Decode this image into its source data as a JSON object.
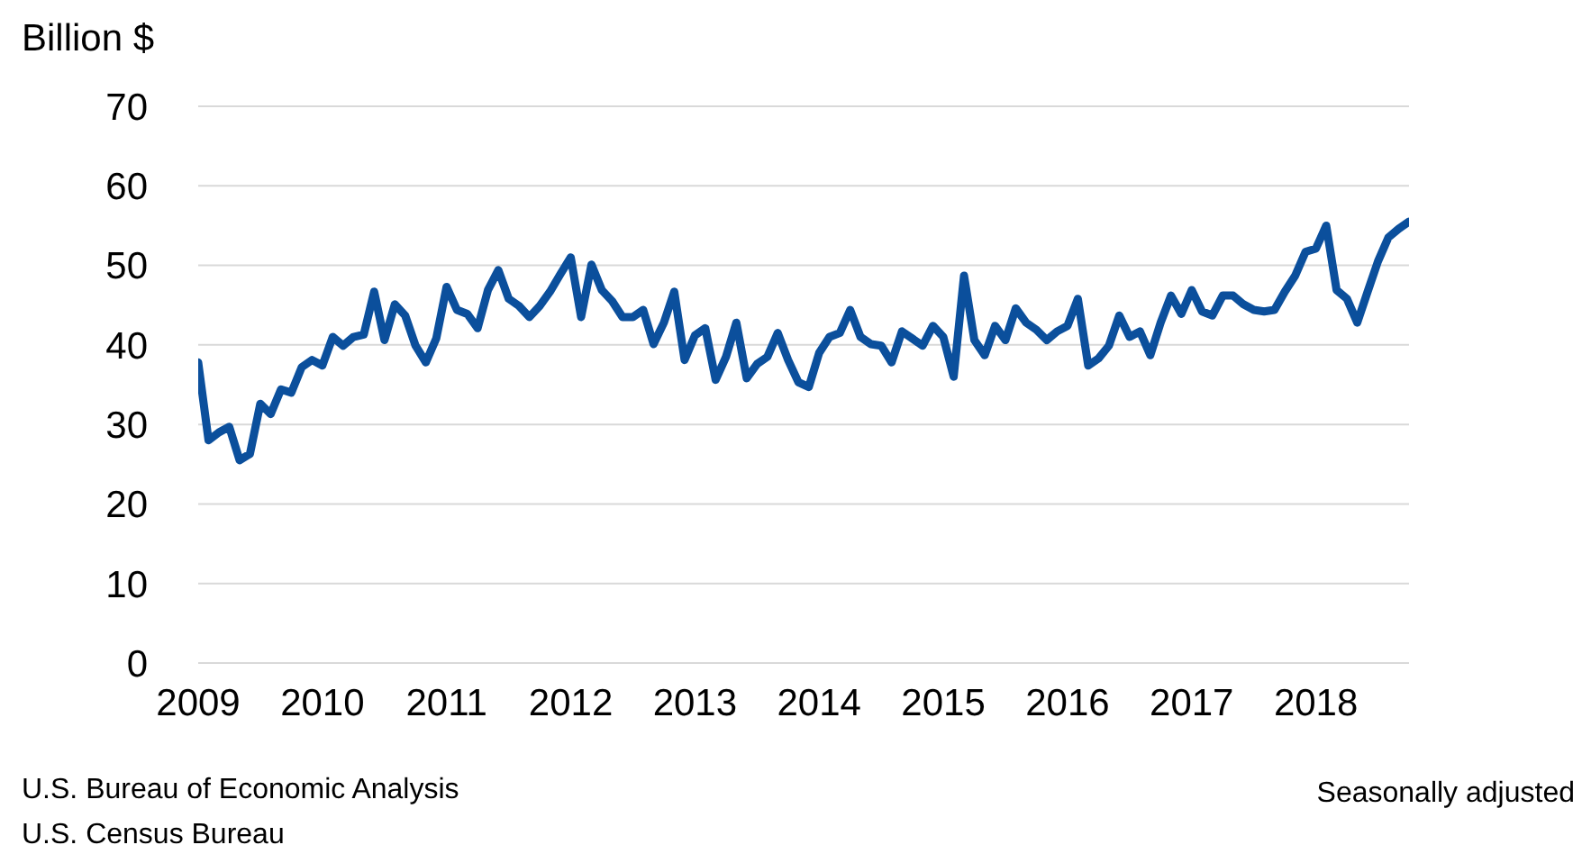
{
  "chart_data": {
    "type": "line",
    "ylabel": "Billion $",
    "annotations": [
      "U.S. Bureau of Economic Analysis",
      "U.S. Census Bureau",
      "Seasonally adjusted"
    ],
    "x": [
      "2009-01",
      "2009-02",
      "2009-03",
      "2009-04",
      "2009-05",
      "2009-06",
      "2009-07",
      "2009-08",
      "2009-09",
      "2009-10",
      "2009-11",
      "2009-12",
      "2010-01",
      "2010-02",
      "2010-03",
      "2010-04",
      "2010-05",
      "2010-06",
      "2010-07",
      "2010-08",
      "2010-09",
      "2010-10",
      "2010-11",
      "2010-12",
      "2011-01",
      "2011-02",
      "2011-03",
      "2011-04",
      "2011-05",
      "2011-06",
      "2011-07",
      "2011-08",
      "2011-09",
      "2011-10",
      "2011-11",
      "2011-12",
      "2012-01",
      "2012-02",
      "2012-03",
      "2012-04",
      "2012-05",
      "2012-06",
      "2012-07",
      "2012-08",
      "2012-09",
      "2012-10",
      "2012-11",
      "2012-12",
      "2013-01",
      "2013-02",
      "2013-03",
      "2013-04",
      "2013-05",
      "2013-06",
      "2013-07",
      "2013-08",
      "2013-09",
      "2013-10",
      "2013-11",
      "2013-12",
      "2014-01",
      "2014-02",
      "2014-03",
      "2014-04",
      "2014-05",
      "2014-06",
      "2014-07",
      "2014-08",
      "2014-09",
      "2014-10",
      "2014-11",
      "2014-12",
      "2015-01",
      "2015-02",
      "2015-03",
      "2015-04",
      "2015-05",
      "2015-06",
      "2015-07",
      "2015-08",
      "2015-09",
      "2015-10",
      "2015-11",
      "2015-12",
      "2016-01",
      "2016-02",
      "2016-03",
      "2016-04",
      "2016-05",
      "2016-06",
      "2016-07",
      "2016-08",
      "2016-09",
      "2016-10",
      "2016-11",
      "2016-12",
      "2017-01",
      "2017-02",
      "2017-03",
      "2017-04",
      "2017-05",
      "2017-06",
      "2017-07",
      "2017-08",
      "2017-09",
      "2017-10",
      "2017-11",
      "2017-12",
      "2018-01",
      "2018-02",
      "2018-03",
      "2018-04",
      "2018-05",
      "2018-06",
      "2018-07",
      "2018-08",
      "2018-09",
      "2018-10"
    ],
    "series": [
      {
        "color": "#0b4f9c",
        "values": [
          37.8,
          28,
          29,
          29.7,
          25.5,
          26.3,
          32.6,
          31.3,
          34.4,
          34,
          37.2,
          38.1,
          37.4,
          41,
          39.9,
          41,
          41.3,
          46.7,
          40.6,
          45.1,
          43.7,
          39.9,
          37.8,
          40.8,
          47.3,
          44.4,
          43.9,
          42.1,
          46.9,
          49.4,
          45.8,
          44.9,
          43.5,
          44.9,
          46.7,
          48.9,
          51,
          43.5,
          50.1,
          46.9,
          45.5,
          43.5,
          43.5,
          44.4,
          40.1,
          42.8,
          46.7,
          38.1,
          41.2,
          42.1,
          35.6,
          38.5,
          42.8,
          35.8,
          37.6,
          38.5,
          41.5,
          38.1,
          35.3,
          34.7,
          39,
          41,
          41.5,
          44.4,
          41,
          40.1,
          39.9,
          37.8,
          41.7,
          40.8,
          39.9,
          42.4,
          41,
          36,
          48.7,
          40.6,
          38.7,
          42.4,
          40.6,
          44.6,
          42.8,
          41.9,
          40.6,
          41.7,
          42.4,
          45.8,
          37.4,
          38.3,
          39.9,
          43.7,
          41,
          41.7,
          38.7,
          42.8,
          46.2,
          43.9,
          46.9,
          44.2,
          43.7,
          46.2,
          46.2,
          45.1,
          44.4,
          44.2,
          44.4,
          46.7,
          48.7,
          51.7,
          52.1,
          55,
          46.9,
          45.8,
          42.8,
          46.7,
          50.5,
          53.5,
          54.6,
          55.5
        ]
      }
    ],
    "xlim": [
      "2009-01",
      "2018-10"
    ],
    "xticks": [
      "2009",
      "2010",
      "2011",
      "2012",
      "2013",
      "2014",
      "2015",
      "2016",
      "2017",
      "2018"
    ],
    "ylim": [
      0,
      70
    ],
    "yticks": [
      0,
      10,
      20,
      30,
      40,
      50,
      60,
      70
    ],
    "grid": "y",
    "legend": false,
    "marker": "none",
    "line_style": "solid"
  }
}
